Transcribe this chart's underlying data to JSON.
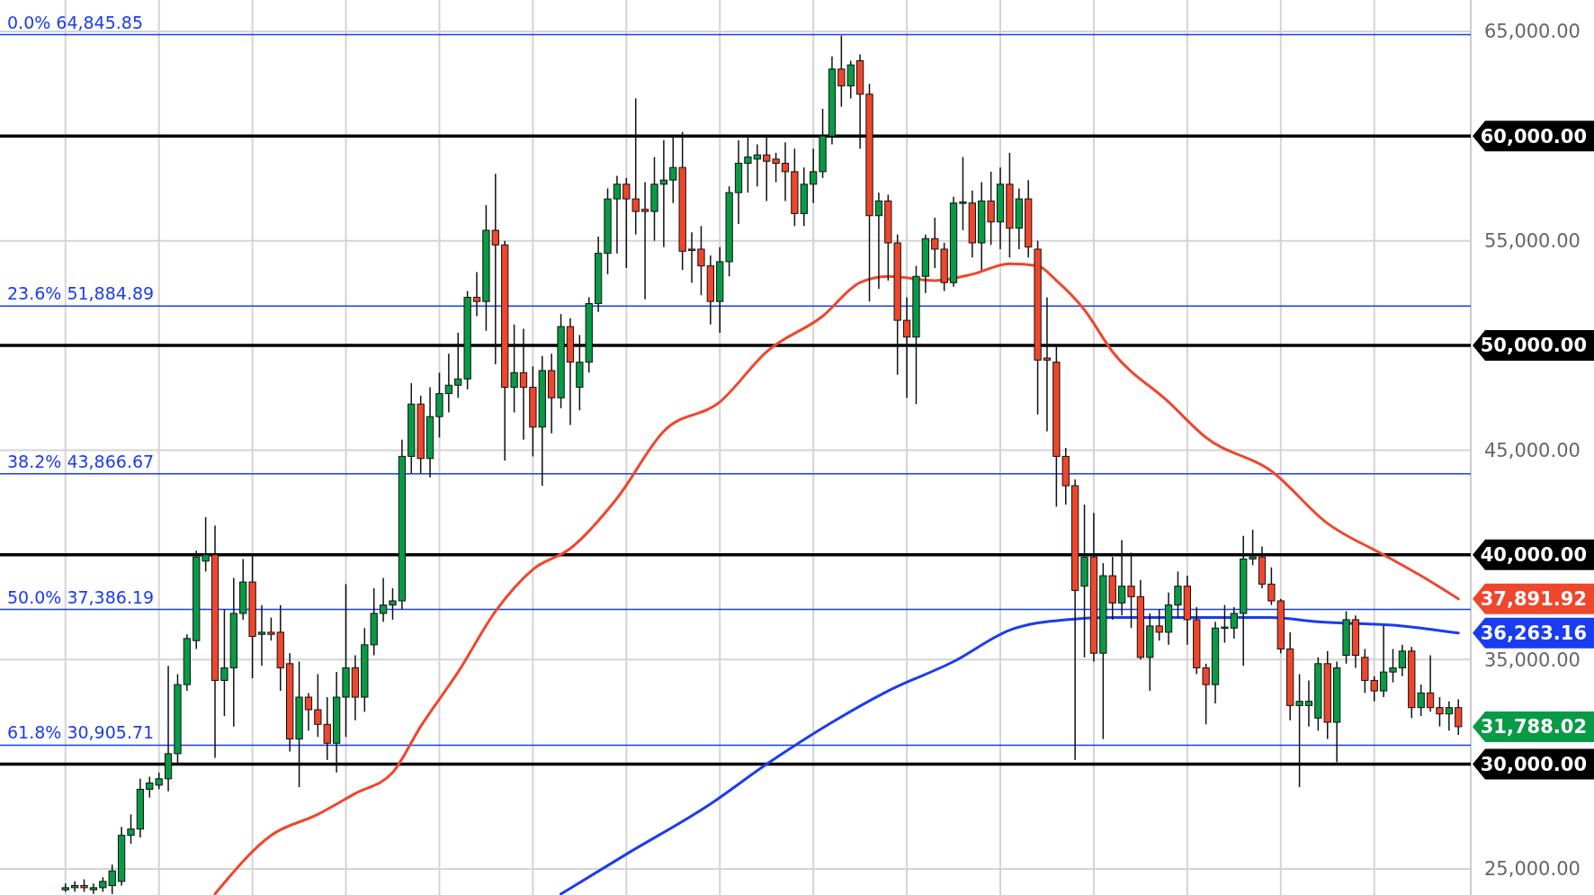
{
  "chart_data": {
    "type": "candlestick",
    "categories": [
      null,
      null,
      null,
      null,
      null,
      null,
      null,
      null,
      null,
      null,
      null,
      null,
      null,
      null,
      null,
      null,
      null,
      null,
      null,
      null,
      null,
      null,
      null,
      null,
      null,
      null,
      null,
      null,
      null,
      null,
      null,
      null,
      null,
      null,
      null,
      null,
      null,
      null,
      null,
      null,
      null,
      null,
      null,
      null,
      null,
      null,
      null,
      null,
      null,
      null,
      null,
      null,
      null,
      null,
      null,
      null,
      null,
      null,
      null,
      null,
      null,
      null,
      null,
      null,
      null,
      null,
      null,
      null,
      null,
      null,
      null,
      null,
      null,
      null,
      null,
      null,
      null,
      null,
      null,
      null,
      null,
      null,
      null,
      null,
      null,
      null,
      null,
      null,
      null,
      null,
      null,
      null,
      null,
      null,
      null,
      null,
      null,
      null,
      null,
      null,
      null,
      null,
      null,
      null,
      null,
      null,
      null,
      null,
      null,
      null,
      null,
      null,
      null,
      null,
      null,
      null,
      null,
      null,
      null,
      null,
      null,
      null,
      null,
      null,
      null,
      null,
      null,
      null,
      null,
      null,
      null,
      null,
      null,
      null,
      null,
      null,
      null,
      null,
      null,
      null,
      null,
      null,
      null,
      null,
      null,
      null,
      null,
      null,
      null,
      null
    ],
    "ohlc": [
      [
        24000,
        24300,
        23900,
        24100
      ],
      [
        24100,
        24400,
        23900,
        24200
      ],
      [
        24200,
        24500,
        23900,
        24100
      ],
      [
        24000,
        24300,
        23800,
        24100
      ],
      [
        24100,
        24600,
        23900,
        24400
      ],
      [
        24200,
        25200,
        23800,
        24900
      ],
      [
        24400,
        27000,
        24200,
        26600
      ],
      [
        26600,
        27600,
        26200,
        26900
      ],
      [
        26900,
        29300,
        26500,
        28800
      ],
      [
        28800,
        29400,
        28400,
        29100
      ],
      [
        29000,
        29600,
        28800,
        29300
      ],
      [
        29300,
        34700,
        28700,
        30500
      ],
      [
        30500,
        34300,
        30000,
        33800
      ],
      [
        33800,
        36200,
        33500,
        36000
      ],
      [
        35900,
        40200,
        35500,
        39900
      ],
      [
        39700,
        41800,
        39200,
        40000
      ],
      [
        40000,
        41400,
        30300,
        34000
      ],
      [
        34000,
        37400,
        32300,
        34600
      ],
      [
        34600,
        38900,
        31800,
        37200
      ],
      [
        37200,
        39800,
        36900,
        38700
      ],
      [
        38700,
        40000,
        34100,
        36100
      ],
      [
        36200,
        37600,
        34700,
        36300
      ],
      [
        36300,
        37000,
        35900,
        36200
      ],
      [
        36300,
        37600,
        33500,
        34600
      ],
      [
        34800,
        35300,
        30600,
        31200
      ],
      [
        31200,
        34900,
        28900,
        33200
      ],
      [
        33200,
        33400,
        31600,
        32600
      ],
      [
        32600,
        34300,
        31300,
        31900
      ],
      [
        31900,
        33200,
        30200,
        31000
      ],
      [
        31000,
        34400,
        29600,
        33200
      ],
      [
        33200,
        38600,
        31300,
        34600
      ],
      [
        34600,
        35200,
        32100,
        33200
      ],
      [
        33200,
        36500,
        32500,
        35700
      ],
      [
        35700,
        38400,
        35200,
        37200
      ],
      [
        37200,
        38900,
        36800,
        37600
      ],
      [
        37600,
        38400,
        36900,
        37800
      ],
      [
        37800,
        45500,
        37400,
        44700
      ],
      [
        44700,
        48200,
        43900,
        47200
      ],
      [
        47200,
        47600,
        43900,
        44600
      ],
      [
        44600,
        48000,
        43700,
        46600
      ],
      [
        46600,
        48700,
        45600,
        47700
      ],
      [
        47700,
        49600,
        46800,
        48100
      ],
      [
        48100,
        50600,
        47500,
        48400
      ],
      [
        48400,
        52600,
        47900,
        52300
      ],
      [
        52300,
        53500,
        51400,
        52100
      ],
      [
        52100,
        56700,
        50700,
        55500
      ],
      [
        55500,
        58200,
        49100,
        54800
      ],
      [
        54800,
        55000,
        44500,
        48000
      ],
      [
        48000,
        51000,
        46800,
        48700
      ],
      [
        48700,
        50800,
        45500,
        48000
      ],
      [
        48000,
        49000,
        44700,
        46100
      ],
      [
        46100,
        49500,
        43300,
        48800
      ],
      [
        48800,
        49600,
        45800,
        47500
      ],
      [
        47500,
        51500,
        47000,
        50900
      ],
      [
        50900,
        51300,
        46200,
        49200
      ],
      [
        48000,
        50500,
        46900,
        49200
      ],
      [
        49200,
        52300,
        48700,
        52000
      ],
      [
        52000,
        55200,
        51600,
        54400
      ],
      [
        54400,
        57500,
        53400,
        57000
      ],
      [
        57000,
        58100,
        54400,
        57700
      ],
      [
        57700,
        58000,
        53700,
        57000
      ],
      [
        57000,
        61800,
        55300,
        56400
      ],
      [
        56500,
        57800,
        52200,
        56400
      ],
      [
        56400,
        59000,
        55000,
        57700
      ],
      [
        57700,
        59800,
        54700,
        57900
      ],
      [
        57900,
        60000,
        56800,
        58500
      ],
      [
        58500,
        60200,
        53600,
        54500
      ],
      [
        54600,
        55400,
        53000,
        54550
      ],
      [
        54600,
        55700,
        52400,
        53800
      ],
      [
        53800,
        54300,
        51000,
        52100
      ],
      [
        52100,
        54700,
        50600,
        54000
      ],
      [
        54000,
        57600,
        53300,
        57300
      ],
      [
        57300,
        59800,
        55800,
        58700
      ],
      [
        58700,
        60000,
        57300,
        59000
      ],
      [
        58900,
        59600,
        57600,
        59100
      ],
      [
        59100,
        60000,
        56900,
        58800
      ],
      [
        58900,
        59200,
        57800,
        58700
      ],
      [
        58700,
        59700,
        56900,
        58300
      ],
      [
        58300,
        59400,
        55700,
        56300
      ],
      [
        56300,
        58500,
        55700,
        57700
      ],
      [
        57700,
        59400,
        56800,
        58300
      ],
      [
        58300,
        61300,
        58000,
        60000
      ],
      [
        60000,
        63800,
        59600,
        63200
      ],
      [
        63200,
        64800,
        61400,
        62400
      ],
      [
        62400,
        63600,
        61800,
        63400
      ],
      [
        63600,
        63900,
        59400,
        62000
      ],
      [
        62000,
        62500,
        52100,
        56200
      ],
      [
        56200,
        57300,
        52700,
        56900
      ],
      [
        56900,
        57200,
        53100,
        54900
      ],
      [
        54900,
        55300,
        48600,
        51200
      ],
      [
        51200,
        52300,
        47500,
        50400
      ],
      [
        50400,
        53800,
        47200,
        53300
      ],
      [
        53300,
        55300,
        52500,
        55100
      ],
      [
        55100,
        56100,
        53700,
        54600
      ],
      [
        54600,
        54900,
        52600,
        53000
      ],
      [
        53000,
        57100,
        52800,
        56800
      ],
      [
        56800,
        59000,
        55500,
        56850
      ],
      [
        56800,
        57400,
        54200,
        54900
      ],
      [
        54900,
        57800,
        53600,
        56900
      ],
      [
        56900,
        58300,
        54800,
        55900
      ],
      [
        55900,
        58500,
        54600,
        57700
      ],
      [
        57700,
        59200,
        54200,
        55600
      ],
      [
        55600,
        57500,
        54600,
        57000
      ],
      [
        57000,
        57900,
        54200,
        54700
      ],
      [
        54600,
        55000,
        46700,
        49300
      ],
      [
        49400,
        52300,
        45900,
        49300
      ],
      [
        49200,
        50000,
        42300,
        44700
      ],
      [
        44700,
        45100,
        42400,
        43300
      ],
      [
        43300,
        43600,
        30200,
        38300
      ],
      [
        38500,
        42400,
        35100,
        39900
      ],
      [
        39900,
        42000,
        34900,
        35300
      ],
      [
        35300,
        39600,
        31200,
        39000
      ],
      [
        39000,
        39900,
        36900,
        37700
      ],
      [
        37700,
        40700,
        37100,
        38500
      ],
      [
        38500,
        40100,
        36500,
        38000
      ],
      [
        38000,
        38800,
        35000,
        35100
      ],
      [
        35100,
        37200,
        33500,
        36600
      ],
      [
        36600,
        37400,
        35900,
        36300
      ],
      [
        36300,
        38200,
        35700,
        37600
      ],
      [
        37600,
        39200,
        37000,
        38500
      ],
      [
        38500,
        39000,
        35700,
        36900
      ],
      [
        36900,
        37500,
        34300,
        34600
      ],
      [
        34600,
        34800,
        31900,
        33800
      ],
      [
        33800,
        36800,
        32900,
        36500
      ],
      [
        36500,
        37600,
        35800,
        36550
      ],
      [
        36500,
        37500,
        36000,
        37200
      ],
      [
        37200,
        40900,
        34700,
        39800
      ],
      [
        39800,
        41200,
        39500,
        39900
      ],
      [
        39900,
        40400,
        38400,
        38600
      ],
      [
        38600,
        39400,
        37600,
        37800
      ],
      [
        37800,
        37900,
        35300,
        35500
      ],
      [
        35500,
        36300,
        32100,
        32800
      ],
      [
        32800,
        34300,
        28900,
        33000
      ],
      [
        32800,
        34000,
        31800,
        33000
      ],
      [
        32200,
        35100,
        31600,
        34800
      ],
      [
        34800,
        35400,
        31200,
        32000
      ],
      [
        32000,
        34900,
        30100,
        34600
      ],
      [
        35200,
        37300,
        34800,
        36900
      ],
      [
        36900,
        37100,
        34600,
        35200
      ],
      [
        35100,
        35500,
        33400,
        34000
      ],
      [
        34000,
        34200,
        33000,
        33500
      ],
      [
        33500,
        36600,
        33200,
        34400
      ],
      [
        34400,
        35500,
        33900,
        34600
      ],
      [
        34600,
        35700,
        34200,
        35400
      ],
      [
        35400,
        35600,
        32200,
        32700
      ],
      [
        32700,
        33800,
        32300,
        33400
      ],
      [
        33400,
        35200,
        32500,
        32700
      ],
      [
        32700,
        33200,
        31800,
        32400
      ],
      [
        32400,
        33000,
        31600,
        32700
      ],
      [
        32700,
        33100,
        31400,
        31788.02
      ]
    ],
    "colors": [
      "#089b45",
      "#089b45",
      "#f0462c",
      "#089b45",
      "#089b45",
      "#089b45",
      "#089b45",
      "#089b45",
      "#089b45",
      "#089b45",
      "#089b45",
      "#089b45",
      "#089b45",
      "#089b45",
      "#089b45",
      "#089b45",
      "#f0462c",
      "#089b45",
      "#089b45",
      "#089b45",
      "#f0462c",
      "#089b45",
      "#f0462c",
      "#f0462c",
      "#f0462c",
      "#089b45",
      "#f0462c",
      "#f0462c",
      "#f0462c",
      "#089b45",
      "#089b45",
      "#f0462c",
      "#089b45",
      "#089b45",
      "#089b45",
      "#089b45",
      "#089b45",
      "#089b45",
      "#f0462c",
      "#089b45",
      "#089b45",
      "#089b45",
      "#089b45",
      "#089b45",
      "#f0462c",
      "#089b45",
      "#f0462c",
      "#f0462c",
      "#089b45",
      "#f0462c",
      "#f0462c",
      "#089b45",
      "#f0462c",
      "#089b45",
      "#f0462c",
      "#089b45",
      "#089b45",
      "#089b45",
      "#089b45",
      "#089b45",
      "#f0462c",
      "#f0462c",
      "#f0462c",
      "#089b45",
      "#089b45",
      "#089b45",
      "#f0462c",
      "#f0462c",
      "#f0462c",
      "#f0462c",
      "#089b45",
      "#089b45",
      "#089b45",
      "#089b45",
      "#089b45",
      "#f0462c",
      "#f0462c",
      "#f0462c",
      "#f0462c",
      "#089b45",
      "#089b45",
      "#089b45",
      "#089b45",
      "#f0462c",
      "#089b45",
      "#f0462c",
      "#f0462c",
      "#089b45",
      "#f0462c",
      "#f0462c",
      "#f0462c",
      "#089b45",
      "#089b45",
      "#f0462c",
      "#f0462c",
      "#089b45",
      "#089b45",
      "#f0462c",
      "#089b45",
      "#f0462c",
      "#089b45",
      "#f0462c",
      "#089b45",
      "#f0462c",
      "#f0462c",
      "#f0462c",
      "#f0462c",
      "#f0462c",
      "#f0462c",
      "#089b45",
      "#f0462c",
      "#089b45",
      "#f0462c",
      "#089b45",
      "#f0462c",
      "#f0462c",
      "#089b45",
      "#f0462c",
      "#089b45",
      "#089b45",
      "#f0462c",
      "#f0462c",
      "#f0462c",
      "#089b45",
      "#089b45",
      "#089b45",
      "#089b45",
      "#089b45",
      "#f0462c",
      "#f0462c",
      "#f0462c",
      "#f0462c",
      "#089b45",
      "#089b45",
      "#089b45",
      "#f0462c",
      "#089b45",
      "#089b45",
      "#f0462c",
      "#f0462c",
      "#f0462c",
      "#089b45",
      "#089b45",
      "#089b45",
      "#f0462c",
      "#089b45",
      "#f0462c",
      "#f0462c",
      "#089b45",
      "#f0462c"
    ],
    "series": [
      {
        "type": "line",
        "color": "#f0462c",
        "values": [
          null,
          null,
          null,
          null,
          null,
          null,
          null,
          null,
          null,
          null,
          null,
          null,
          null,
          null,
          null,
          null,
          23800,
          null,
          null,
          null,
          null,
          null,
          26600,
          null,
          null,
          null,
          null,
          27600,
          null,
          null,
          null,
          28600,
          null,
          null,
          null,
          29600,
          null,
          null,
          31800,
          null,
          null,
          null,
          34400,
          null,
          null,
          null,
          37300,
          null,
          null,
          null,
          39300,
          null,
          null,
          null,
          40300,
          null,
          null,
          null,
          null,
          42700,
          null,
          null,
          null,
          null,
          45900,
          null,
          null,
          null,
          null,
          null,
          47300,
          null,
          null,
          null,
          null,
          49700,
          null,
          null,
          null,
          null,
          null,
          51400,
          null,
          null,
          null,
          53000,
          null,
          null,
          53300,
          null,
          null,
          null,
          null,
          53100,
          null,
          null,
          null,
          53400,
          null,
          null,
          null,
          53900,
          null,
          null,
          53800,
          null,
          53100,
          null,
          null,
          51700,
          null,
          null,
          49700,
          null,
          null,
          null,
          null,
          null,
          47300,
          null,
          null,
          null,
          45600,
          null,
          null,
          null,
          null,
          null,
          null,
          44000,
          null,
          null,
          null,
          null,
          null,
          41500,
          null,
          null,
          null,
          null,
          null,
          40000,
          null,
          null,
          null,
          39000,
          null,
          null,
          null,
          37891.92
        ],
        "value_labels": [
          null,
          null,
          null,
          null,
          null,
          null,
          null,
          null,
          null,
          null,
          null,
          null,
          null,
          null,
          null,
          null,
          null,
          null,
          null,
          null,
          null,
          null,
          null,
          null,
          null,
          null,
          null,
          null,
          null,
          null,
          null,
          null,
          null,
          null,
          null,
          null,
          null,
          null,
          null,
          null,
          null,
          null,
          null,
          null,
          null,
          null,
          null,
          null,
          null,
          null,
          null,
          null,
          null,
          null,
          null,
          null,
          null,
          null,
          null,
          null,
          null,
          null,
          null,
          null,
          null,
          null,
          null,
          null,
          null,
          null,
          null,
          null,
          null,
          null,
          null,
          null,
          null,
          null,
          null,
          null,
          null,
          null,
          null,
          null,
          null,
          null,
          null,
          null,
          null,
          null,
          null,
          null,
          null,
          null,
          null,
          null,
          null,
          null,
          null,
          null,
          null,
          null,
          null,
          null,
          null,
          null,
          null,
          null,
          null,
          null,
          null,
          null,
          null,
          null,
          null,
          null,
          null,
          null,
          null,
          null,
          null,
          null,
          null,
          null,
          null,
          null,
          null,
          null,
          null,
          null,
          null,
          null,
          null,
          null,
          null,
          null,
          null,
          null,
          null,
          null,
          null,
          null,
          null,
          null,
          null,
          null,
          null,
          null,
          null,
          "37,891.92"
        ]
      },
      {
        "type": "line",
        "color": "#1a3cf0",
        "values": [
          null,
          null,
          null,
          null,
          null,
          null,
          null,
          null,
          null,
          null,
          null,
          null,
          null,
          null,
          null,
          null,
          null,
          null,
          null,
          null,
          null,
          null,
          null,
          null,
          null,
          null,
          null,
          null,
          null,
          null,
          null,
          null,
          null,
          null,
          null,
          null,
          null,
          null,
          null,
          null,
          null,
          null,
          null,
          null,
          null,
          null,
          null,
          null,
          null,
          null,
          null,
          null,
          null,
          23800,
          null,
          null,
          null,
          null,
          null,
          null,
          25700,
          null,
          null,
          null,
          null,
          null,
          null,
          null,
          null,
          28100,
          null,
          null,
          null,
          null,
          null,
          30000,
          null,
          null,
          null,
          null,
          null,
          null,
          32000,
          null,
          null,
          null,
          null,
          null,
          33500,
          null,
          null,
          null,
          null,
          null,
          null,
          34900,
          null,
          null,
          null,
          null,
          null,
          36400,
          null,
          null,
          null,
          null,
          null,
          36900,
          null,
          null,
          null,
          null,
          37000,
          null,
          null,
          null,
          null,
          null,
          null,
          null,
          null,
          null,
          null,
          37000,
          null,
          null,
          null,
          null,
          null,
          37000,
          null,
          null,
          null,
          null,
          36800,
          null,
          null,
          null,
          null,
          null,
          null,
          null,
          null,
          36600,
          null,
          null,
          null,
          null,
          null,
          36263.16
        ],
        "value_labels": [
          null,
          null,
          null,
          null,
          null,
          null,
          null,
          null,
          null,
          null,
          null,
          null,
          null,
          null,
          null,
          null,
          null,
          null,
          null,
          null,
          null,
          null,
          null,
          null,
          null,
          null,
          null,
          null,
          null,
          null,
          null,
          null,
          null,
          null,
          null,
          null,
          null,
          null,
          null,
          null,
          null,
          null,
          null,
          null,
          null,
          null,
          null,
          null,
          null,
          null,
          null,
          null,
          null,
          null,
          null,
          null,
          null,
          null,
          null,
          null,
          null,
          null,
          null,
          null,
          null,
          null,
          null,
          null,
          null,
          null,
          null,
          null,
          null,
          null,
          null,
          null,
          null,
          null,
          null,
          null,
          null,
          null,
          null,
          null,
          null,
          null,
          null,
          null,
          null,
          null,
          null,
          null,
          null,
          null,
          null,
          null,
          null,
          null,
          null,
          null,
          null,
          null,
          null,
          null,
          null,
          null,
          null,
          null,
          null,
          null,
          null,
          null,
          null,
          null,
          null,
          null,
          null,
          null,
          null,
          null,
          null,
          null,
          null,
          null,
          null,
          null,
          null,
          null,
          null,
          null,
          null,
          null,
          null,
          null,
          null,
          null,
          null,
          null,
          null,
          null,
          null,
          null,
          null,
          null,
          null,
          null,
          null,
          null,
          null,
          "36,263.16"
        ]
      }
    ],
    "ylim": [
      23750,
      66500
    ],
    "yticks": [
      {
        "value": 25000,
        "label": "25,000.00"
      },
      {
        "value": 35000,
        "label": "35,000.00"
      },
      {
        "value": 45000,
        "label": "45,000.00"
      },
      {
        "value": 55000,
        "label": "55,000.00"
      },
      {
        "value": 65000,
        "label": "65,000.00"
      }
    ],
    "grid": true,
    "tick_labels": "y",
    "ref_lines": [
      {
        "axis": "y",
        "value": 60000,
        "label": "60,000.00",
        "color": "#000000"
      },
      {
        "axis": "y",
        "value": 50000,
        "label": "50,000.00",
        "color": "#000000"
      },
      {
        "axis": "y",
        "value": 40000,
        "label": "40,000.00",
        "color": "#000000"
      },
      {
        "axis": "y",
        "value": 30000,
        "label": "30,000.00",
        "color": "#000000"
      },
      {
        "axis": "y",
        "value": 64845.85,
        "label": "0.0% 64,845.85",
        "color": "#1a3cf0"
      },
      {
        "axis": "y",
        "value": 51884.89,
        "label": "23.6% 51,884.89",
        "color": "#1a3cf0"
      },
      {
        "axis": "y",
        "value": 43866.67,
        "label": "38.2% 43,866.67",
        "color": "#1a3cf0"
      },
      {
        "axis": "y",
        "value": 37386.19,
        "label": "50.0% 37,386.19",
        "color": "#1a3cf0"
      },
      {
        "axis": "y",
        "value": 30905.71,
        "label": "61.8% 30,905.71",
        "color": "#1a3cf0"
      }
    ],
    "value_labels": [
      null,
      null,
      null,
      null,
      null,
      null,
      null,
      null,
      null,
      null,
      null,
      null,
      null,
      null,
      null,
      null,
      null,
      null,
      null,
      null,
      null,
      null,
      null,
      null,
      null,
      null,
      null,
      null,
      null,
      null,
      null,
      null,
      null,
      null,
      null,
      null,
      null,
      null,
      null,
      null,
      null,
      null,
      null,
      null,
      null,
      null,
      null,
      null,
      null,
      null,
      null,
      null,
      null,
      null,
      null,
      null,
      null,
      null,
      null,
      null,
      null,
      null,
      null,
      null,
      null,
      null,
      null,
      null,
      null,
      null,
      null,
      null,
      null,
      null,
      null,
      null,
      null,
      null,
      null,
      null,
      null,
      null,
      null,
      null,
      null,
      null,
      null,
      null,
      null,
      null,
      null,
      null,
      null,
      null,
      null,
      null,
      null,
      null,
      null,
      null,
      null,
      null,
      null,
      null,
      null,
      null,
      null,
      null,
      null,
      null,
      null,
      null,
      null,
      null,
      null,
      null,
      null,
      null,
      null,
      null,
      null,
      null,
      null,
      null,
      null,
      null,
      null,
      null,
      null,
      null,
      null,
      null,
      null,
      null,
      null,
      null,
      null,
      null,
      null,
      null,
      null,
      null,
      null,
      null,
      null,
      null,
      null,
      null,
      null,
      "31,788.02"
    ]
  }
}
